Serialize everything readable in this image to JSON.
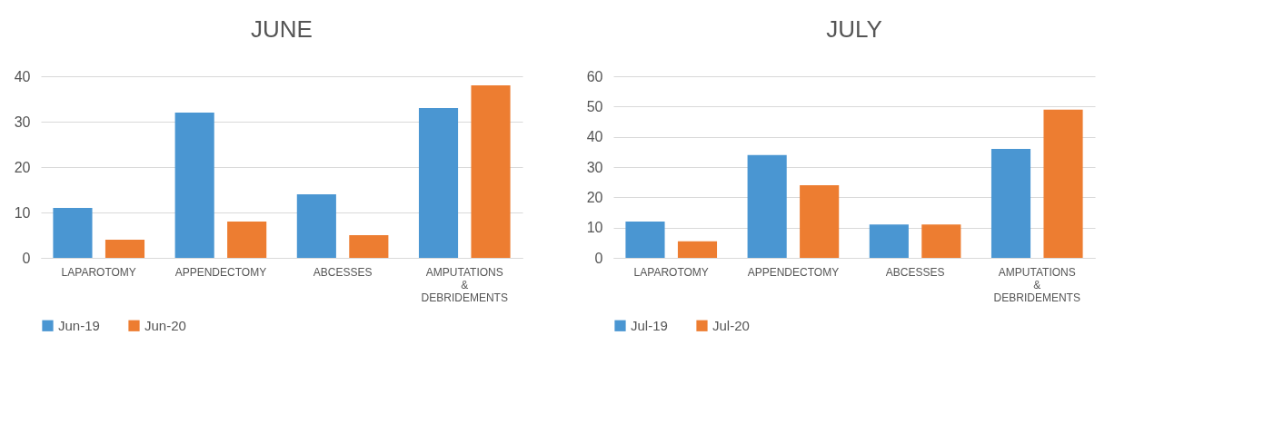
{
  "chart_data": [
    {
      "type": "bar",
      "title": "JUNE",
      "categories": [
        "LAPAROTOMY",
        "APPENDECTOMY",
        "ABCESSES",
        "AMPUTATIONS & DEBRIDEMENTS"
      ],
      "series": [
        {
          "name": "Jun-19",
          "color": "#4a96d2",
          "values": [
            11,
            32,
            14,
            33
          ]
        },
        {
          "name": "Jun-20",
          "color": "#ed7d31",
          "values": [
            4,
            8,
            5,
            38
          ]
        }
      ],
      "ylim": [
        0,
        40
      ],
      "yticks": [
        0,
        10,
        20,
        30,
        40
      ],
      "grid": "y",
      "legend": "bottom"
    },
    {
      "type": "bar",
      "title": "JULY",
      "categories": [
        "LAPAROTOMY",
        "APPENDECTOMY",
        "ABCESSES",
        "AMPUTATIONS & DEBRIDEMENTS"
      ],
      "series": [
        {
          "name": "Jul-19",
          "color": "#4a96d2",
          "values": [
            12,
            34,
            11,
            36
          ]
        },
        {
          "name": "Jul-20",
          "color": "#ed7d31",
          "values": [
            5.5,
            24,
            11,
            49
          ]
        }
      ],
      "ylim": [
        0,
        60
      ],
      "yticks": [
        0,
        10,
        20,
        30,
        40,
        50,
        60
      ],
      "grid": "y",
      "legend": "bottom"
    }
  ]
}
